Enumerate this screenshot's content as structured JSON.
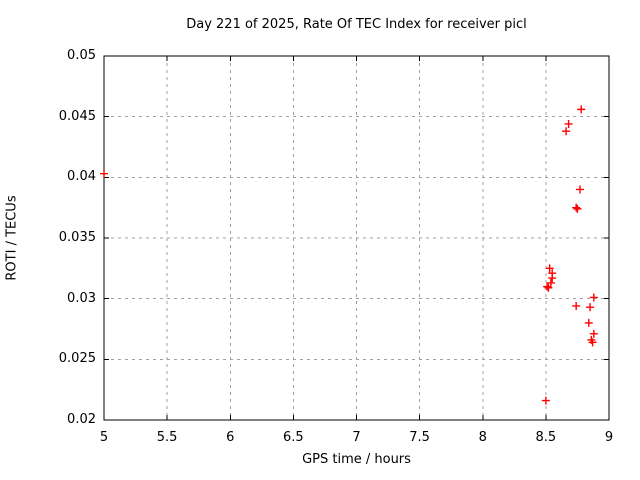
{
  "chart_data": {
    "type": "scatter",
    "title": "Day 221 of 2025, Rate Of TEC Index for receiver picl",
    "xlabel": "GPS time / hours",
    "ylabel": "ROTI / TECUs",
    "xlim": [
      5,
      9
    ],
    "ylim": [
      0.02,
      0.05
    ],
    "x_ticks": [
      5,
      5.5,
      6,
      6.5,
      7,
      7.5,
      8,
      8.5,
      9
    ],
    "x_tick_labels": [
      "5",
      "5.5",
      "6",
      "6.5",
      "7",
      "7.5",
      "8",
      "8.5",
      "9"
    ],
    "y_ticks": [
      0.02,
      0.025,
      0.03,
      0.035,
      0.04,
      0.045,
      0.05
    ],
    "y_tick_labels": [
      "0.02",
      "0.025",
      "0.03",
      "0.035",
      "0.04",
      "0.045",
      "0.05"
    ],
    "grid": true,
    "legend": "none",
    "marker": {
      "shape": "plus",
      "color": "#ff0000",
      "size": 9
    },
    "series": [
      {
        "name": "ROTI",
        "points": [
          [
            5.0,
            0.0403
          ],
          [
            8.5,
            0.0216
          ],
          [
            8.51,
            0.031
          ],
          [
            8.52,
            0.0309
          ],
          [
            8.54,
            0.0313
          ],
          [
            8.55,
            0.0317
          ],
          [
            8.55,
            0.0321
          ],
          [
            8.53,
            0.0325
          ],
          [
            8.66,
            0.0438
          ],
          [
            8.68,
            0.0444
          ],
          [
            8.78,
            0.0456
          ],
          [
            8.77,
            0.039
          ],
          [
            8.74,
            0.0375
          ],
          [
            8.75,
            0.0374
          ],
          [
            8.74,
            0.0294
          ],
          [
            8.88,
            0.0301
          ],
          [
            8.85,
            0.0293
          ],
          [
            8.84,
            0.028
          ],
          [
            8.88,
            0.0271
          ],
          [
            8.86,
            0.0266
          ],
          [
            8.87,
            0.0264
          ]
        ]
      }
    ]
  },
  "colors": {
    "background": "#ffffff",
    "border": "#000000",
    "grid": "#a0a0a0",
    "marker": "#ff0000",
    "text": "#000000"
  }
}
